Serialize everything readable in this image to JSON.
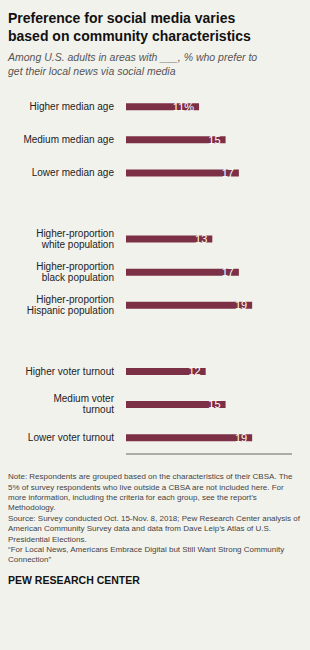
{
  "chart_data": {
    "type": "bar",
    "orientation": "horizontal",
    "title": "Preference for social media varies\nbased on community characteristics",
    "subtitle": "Among U.S. adults in areas with ___, % who prefer to\nget their local news via social media",
    "categories": [
      "Higher median age",
      "Medium median age",
      "Lower median age",
      null,
      "Higher-proportion\nwhite population",
      "Higher-proportion\nblack population",
      "Higher-proportion\nHispanic population",
      null,
      "Higher voter turnout",
      "Medium voter\nturnout",
      "Lower voter turnout"
    ],
    "values": [
      11,
      15,
      17,
      null,
      13,
      17,
      19,
      null,
      12,
      15,
      19
    ],
    "value_labels": [
      "11%",
      "15",
      "17",
      null,
      "13",
      "17",
      "19",
      null,
      "12",
      "15",
      "19"
    ],
    "color": "#7b3045",
    "xlim": [
      0,
      25
    ],
    "grid": false,
    "data_labels": true,
    "tick_labels": "y",
    "annotations": [
      "Note: Respondents are grouped based on the characteristics of their CBSA. The 5% of survey respondents who live outside a CBSA are not included here. For more information, including the criteria for each group, see the report’s Methodology.\nSource: Survey conducted Oct. 15-Nov. 8, 2018; Pew Research Center analysis of American Community Survey data and data from Dave Leip’s Atlas of U.S. Presidential Elections.\n“For Local News, Americans Embrace Digital but Still Want Strong Community Connection”",
      "PEW RESEARCH CENTER"
    ]
  }
}
